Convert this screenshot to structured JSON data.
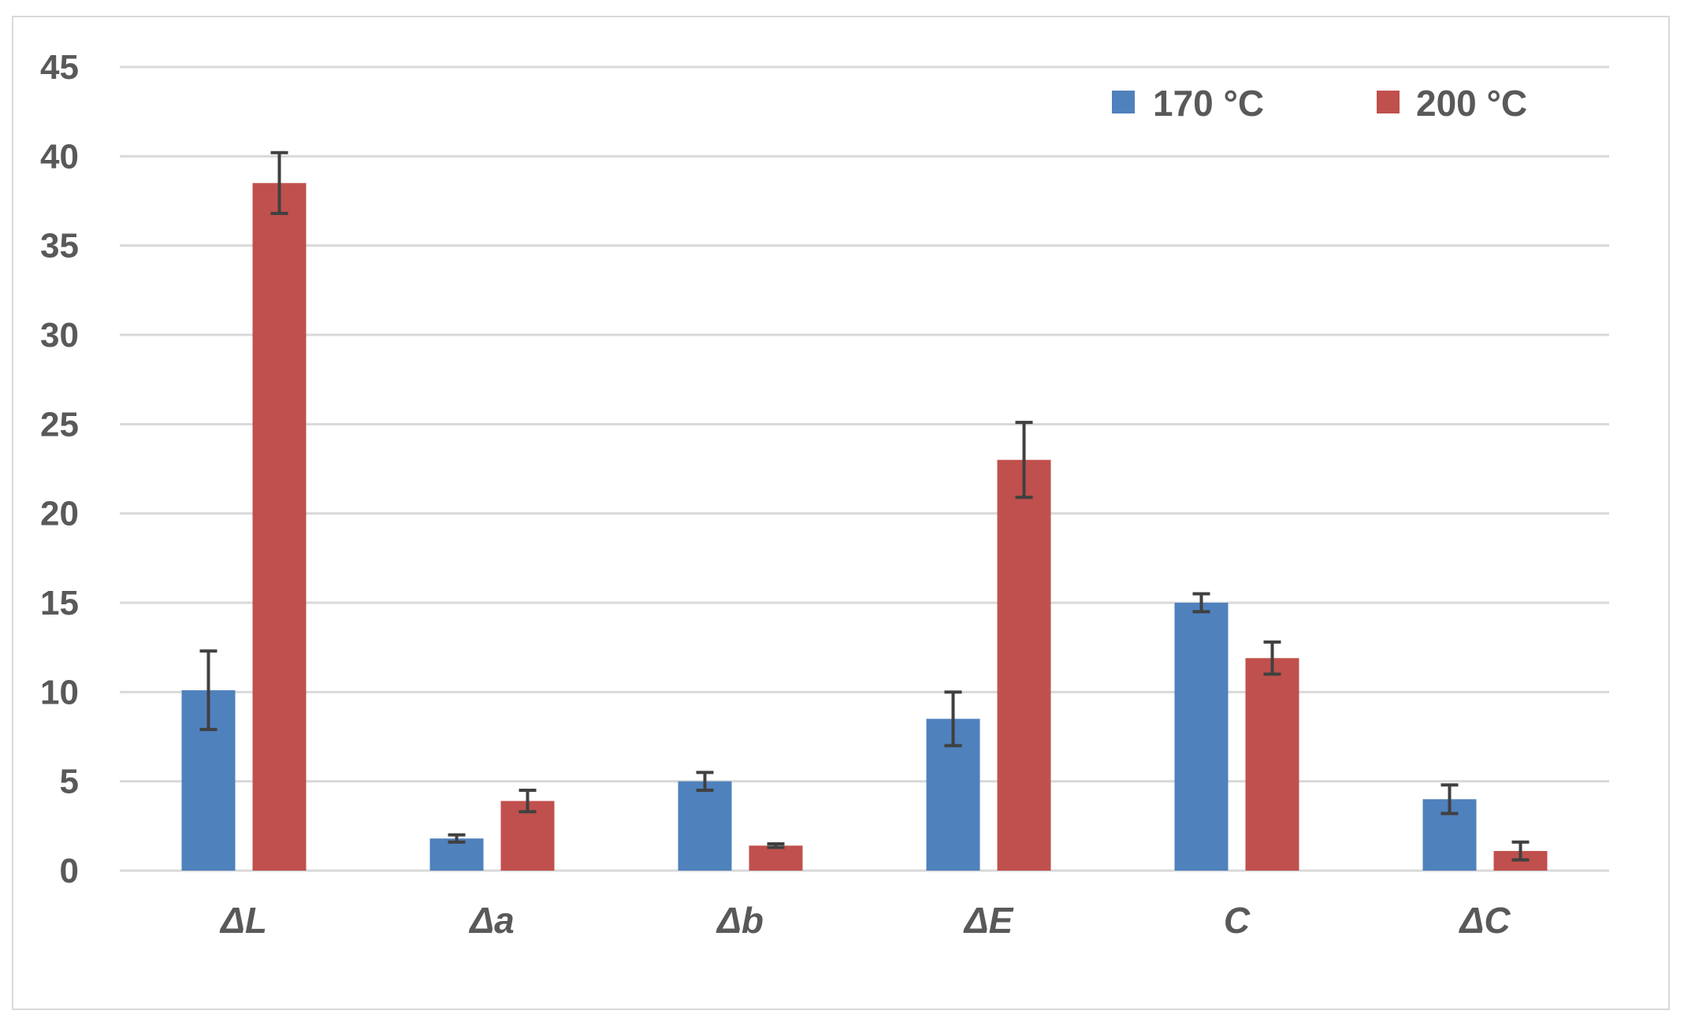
{
  "chart_data": {
    "type": "bar",
    "categories": [
      "ΔL",
      "Δa",
      "Δb",
      "ΔE",
      "C",
      "ΔC"
    ],
    "series": [
      {
        "name": "170 °C",
        "color": "#4f81bd",
        "values": [
          10.1,
          1.8,
          5.0,
          8.5,
          15.0,
          4.0
        ],
        "errors": [
          2.2,
          0.2,
          0.5,
          1.5,
          0.5,
          0.8
        ]
      },
      {
        "name": "200 °C",
        "color": "#c0504d",
        "values": [
          38.5,
          3.9,
          1.4,
          23.0,
          11.9,
          1.1
        ],
        "errors": [
          1.7,
          0.6,
          0.1,
          2.1,
          0.9,
          0.5
        ]
      }
    ],
    "ylim": [
      0,
      45
    ],
    "yticks": [
      "0",
      "5",
      "10",
      "15",
      "20",
      "25",
      "30",
      "35",
      "40",
      "45"
    ],
    "grid": true,
    "legend_position": "top-right",
    "title": "",
    "xlabel": "",
    "ylabel": ""
  }
}
